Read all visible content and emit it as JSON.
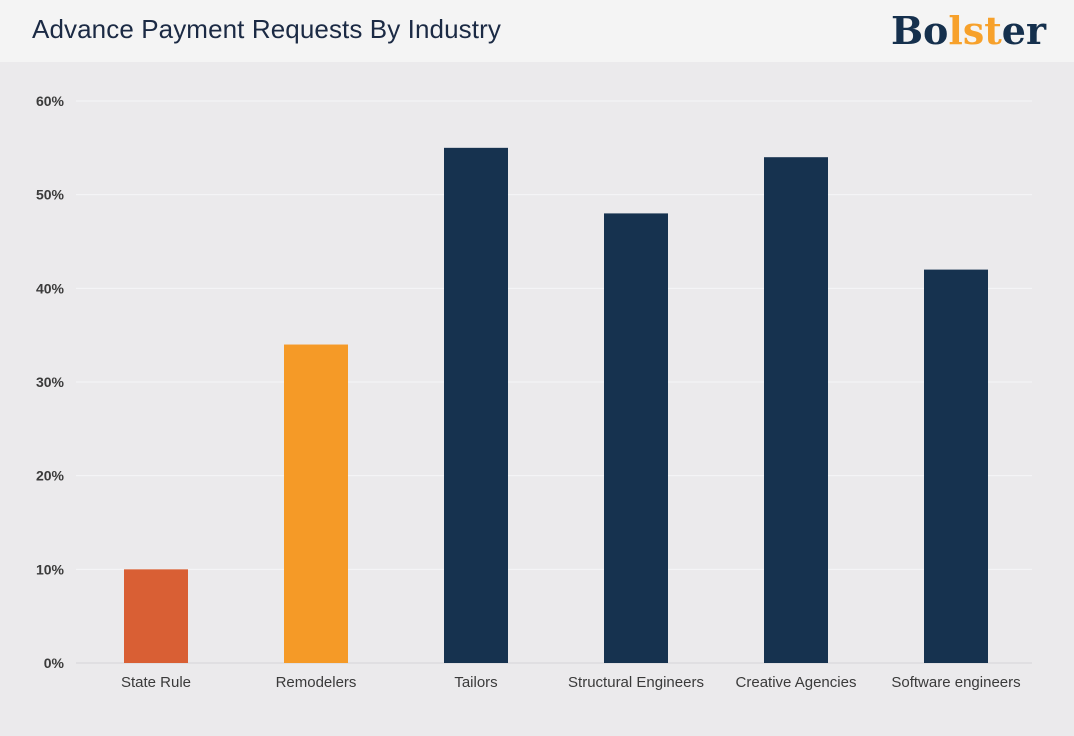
{
  "header": {
    "title": "Advance Payment Requests By Industry",
    "logo": {
      "text": "Bolster",
      "part_before": "Bo",
      "part_accent": "lst",
      "part_after": "er",
      "dark_color": "#15304d",
      "accent_color": "#f7a12b"
    }
  },
  "chart_data": {
    "type": "bar",
    "title": "Advance Payment Requests By Industry",
    "xlabel": "",
    "ylabel": "",
    "categories": [
      "State Rule",
      "Remodelers",
      "Tailors",
      "Structural Engineers",
      "Creative Agencies",
      "Software engineers"
    ],
    "values": [
      10,
      34,
      55,
      48,
      54,
      42
    ],
    "colors": [
      "#d95f34",
      "#f59a27",
      "#16324f",
      "#16324f",
      "#16324f",
      "#16324f"
    ],
    "ylim": [
      0,
      60
    ],
    "yticks": [
      0,
      10,
      20,
      30,
      40,
      50,
      60
    ],
    "ytick_labels": [
      "0%",
      "10%",
      "20%",
      "30%",
      "40%",
      "50%",
      "60%"
    ],
    "grid": true,
    "legend": "none"
  }
}
